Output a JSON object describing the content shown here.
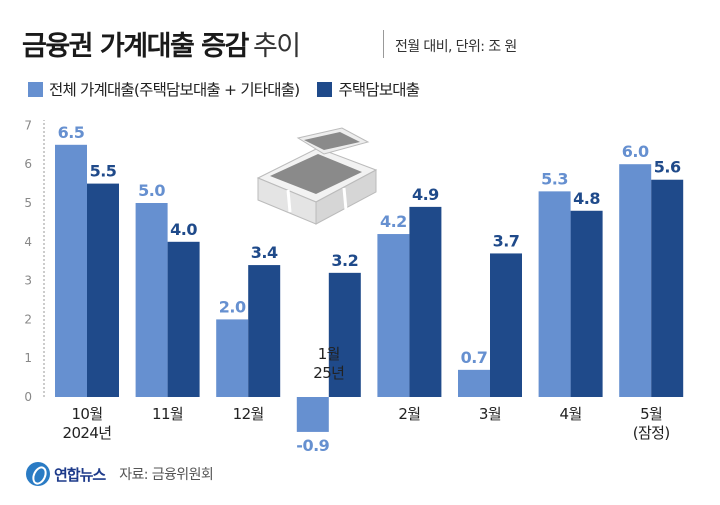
{
  "header": {
    "title_bold": "금융권 가계대출 증감",
    "title_light": "추이",
    "subtitle": "전월 대비, 단위: 조 원"
  },
  "legend": [
    {
      "label": "전체 가계대출(주택담보대출 + 기타대출)",
      "color": "#6690d0"
    },
    {
      "label": "주택담보대출",
      "color": "#1f4a8a"
    }
  ],
  "footer": {
    "logo": "연합뉴스",
    "source": "자료: 금융위원회"
  },
  "icon": "money-stack-icon",
  "chart_data": {
    "type": "bar",
    "categories": [
      "10월 2024년",
      "11월",
      "12월",
      "1월 25년",
      "2월",
      "3월",
      "4월",
      "5월 (잠정)"
    ],
    "series": [
      {
        "name": "전체 가계대출(주택담보대출 + 기타대출)",
        "values": [
          6.5,
          5.0,
          2.0,
          -0.9,
          4.2,
          0.7,
          5.3,
          6.0
        ],
        "labels": [
          "6.5",
          "5.0",
          "2.0",
          "-0.9",
          "4.2",
          "0.7",
          "5.3",
          "6.0"
        ],
        "color": "#6690d0"
      },
      {
        "name": "주택담보대출",
        "values": [
          5.5,
          4.0,
          3.4,
          3.2,
          4.9,
          3.7,
          4.8,
          5.6
        ],
        "labels": [
          "5.5",
          "4.0",
          "3.4",
          "3.2",
          "4.9",
          "3.7",
          "4.8",
          "5.6"
        ],
        "color": "#1f4a8a"
      }
    ],
    "category_labels": [
      [
        "10월",
        "2024년"
      ],
      [
        "11월"
      ],
      [
        "12월"
      ],
      [
        "1월",
        "25년"
      ],
      [
        "2월"
      ],
      [
        "3월"
      ],
      [
        "4월"
      ],
      [
        "5월",
        "(잠정)"
      ]
    ],
    "yticks": [
      "0",
      "1",
      "2",
      "3",
      "4",
      "5",
      "6",
      "7"
    ],
    "ylim": [
      -1,
      7
    ],
    "grid": false,
    "legend_position": "top-left"
  }
}
